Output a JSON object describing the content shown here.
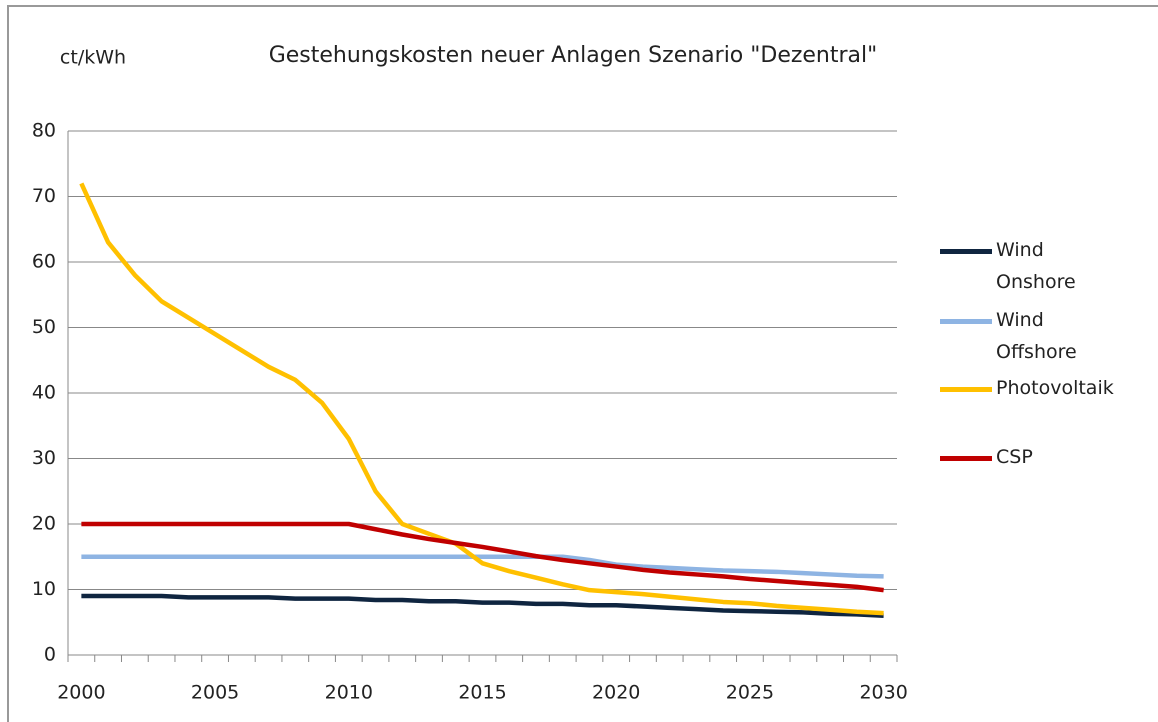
{
  "chart_data": {
    "type": "line",
    "title": "Gestehungskosten  neuer  Anlagen  Szenario  \"Dezentral\"",
    "y_label": "ct/kWh",
    "categories": [
      "2000",
      null,
      null,
      null,
      null,
      "2005",
      null,
      null,
      null,
      null,
      "2010",
      null,
      null,
      null,
      null,
      "2015",
      null,
      null,
      null,
      null,
      "2020",
      null,
      null,
      null,
      null,
      "2025",
      null,
      null,
      null,
      null,
      "2030"
    ],
    "ylim": [
      0,
      80
    ],
    "yticks": [
      0,
      10,
      20,
      30,
      40,
      50,
      60,
      70,
      80
    ],
    "grid": true,
    "legend": "right",
    "series": [
      {
        "name": "Wind Onshore",
        "color": "#0f2540",
        "values": [
          9,
          9,
          9,
          9,
          8.8,
          8.8,
          8.8,
          8.8,
          8.6,
          8.6,
          8.6,
          8.4,
          8.4,
          8.2,
          8.2,
          8.0,
          8.0,
          7.8,
          7.8,
          7.6,
          7.6,
          7.4,
          7.2,
          7.0,
          6.8,
          6.7,
          6.6,
          6.5,
          6.3,
          6.2,
          6.0
        ]
      },
      {
        "name": "Wind Offshore",
        "color": "#8eb4e3",
        "values": [
          15,
          15,
          15,
          15,
          15,
          15,
          15,
          15,
          15,
          15,
          15,
          15,
          15,
          15,
          15,
          15,
          15,
          15,
          15,
          14.5,
          13.8,
          13.5,
          13.3,
          13.1,
          12.9,
          12.8,
          12.7,
          12.5,
          12.3,
          12.1,
          12.0
        ]
      },
      {
        "name": "Photovoltaik",
        "color": "#ffc000",
        "values": [
          72,
          63,
          58,
          54,
          51.5,
          49,
          46.5,
          44,
          42,
          38.5,
          33,
          25,
          20,
          18.5,
          17,
          14,
          12.8,
          11.8,
          10.8,
          9.9,
          9.6,
          9.3,
          8.9,
          8.5,
          8.1,
          7.9,
          7.5,
          7.2,
          6.9,
          6.6,
          6.4
        ]
      },
      {
        "name": "CSP",
        "color": "#c00000",
        "values": [
          20,
          20,
          20,
          20,
          20,
          20,
          20,
          20,
          20,
          20,
          20,
          19.2,
          18.4,
          17.7,
          17.1,
          16.5,
          15.8,
          15.1,
          14.5,
          14.0,
          13.5,
          13.0,
          12.6,
          12.3,
          12.0,
          11.6,
          11.3,
          11.0,
          10.7,
          10.4,
          9.9
        ]
      }
    ]
  }
}
